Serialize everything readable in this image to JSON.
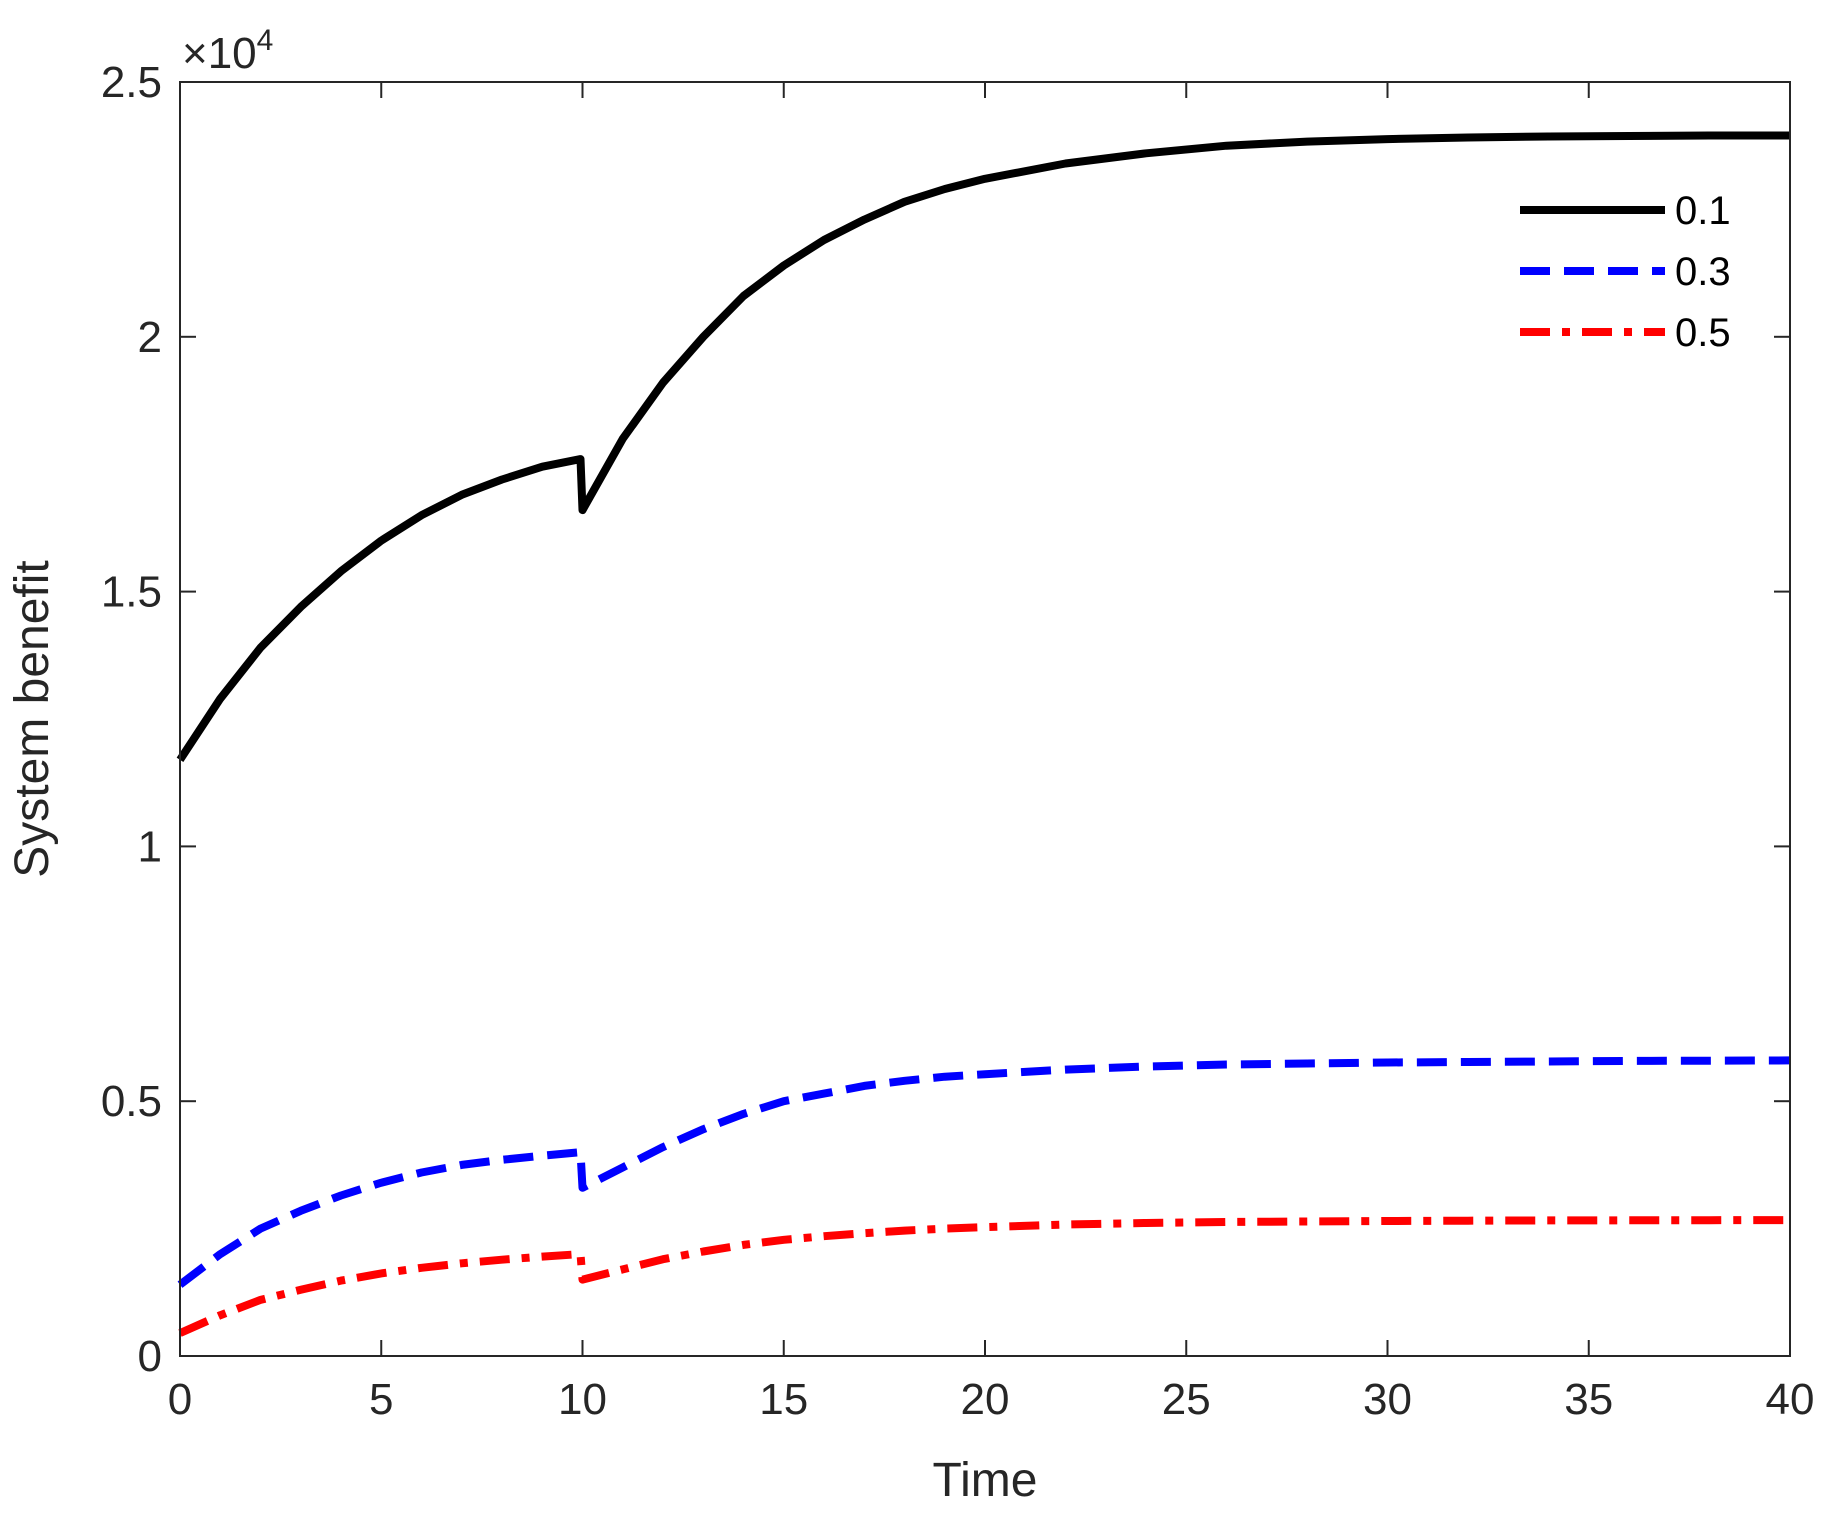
{
  "chart_data": {
    "type": "line",
    "title": "",
    "xlabel": "Time",
    "ylabel": "System benefit",
    "xlim": [
      0,
      40
    ],
    "ylim": [
      0,
      25000
    ],
    "x_ticks": [
      0,
      5,
      10,
      15,
      20,
      25,
      30,
      35,
      40
    ],
    "y_ticks": [
      0,
      5000,
      10000,
      15000,
      20000,
      25000
    ],
    "y_tick_labels": [
      "0",
      "0.5",
      "1",
      "1.5",
      "2",
      "2.5"
    ],
    "y_exponent_label": {
      "base": "×10",
      "exp": "4"
    },
    "grid": false,
    "legend_position": "top-right",
    "series": [
      {
        "name": "0.1",
        "color": "#000000",
        "style": "solid",
        "x": [
          0,
          1,
          2,
          3,
          4,
          5,
          6,
          7,
          8,
          9,
          9.95,
          10,
          11,
          12,
          13,
          14,
          15,
          16,
          17,
          18,
          19,
          20,
          22,
          24,
          26,
          28,
          30,
          32,
          34,
          36,
          38,
          40
        ],
        "y": [
          11700,
          12900,
          13900,
          14700,
          15400,
          16000,
          16500,
          16900,
          17200,
          17450,
          17600,
          16600,
          18000,
          19100,
          20000,
          20800,
          21400,
          21900,
          22300,
          22650,
          22900,
          23100,
          23400,
          23600,
          23750,
          23830,
          23880,
          23910,
          23930,
          23940,
          23950,
          23950
        ]
      },
      {
        "name": "0.3",
        "color": "#0000ff",
        "style": "dashed",
        "x": [
          0,
          1,
          2,
          3,
          4,
          5,
          6,
          7,
          8,
          9,
          9.95,
          10,
          11,
          12,
          13,
          14,
          15,
          16,
          17,
          18,
          19,
          20,
          22,
          24,
          26,
          28,
          30,
          32,
          34,
          36,
          38,
          40
        ],
        "y": [
          1400,
          2000,
          2500,
          2850,
          3150,
          3400,
          3600,
          3750,
          3850,
          3930,
          4000,
          3300,
          3700,
          4100,
          4450,
          4750,
          5000,
          5150,
          5300,
          5400,
          5480,
          5530,
          5620,
          5680,
          5720,
          5740,
          5760,
          5770,
          5780,
          5790,
          5795,
          5800
        ]
      },
      {
        "name": "0.5",
        "color": "#ff0000",
        "style": "dashdot",
        "x": [
          0,
          1,
          2,
          3,
          4,
          5,
          6,
          7,
          8,
          9,
          9.95,
          10,
          11,
          12,
          13,
          14,
          15,
          16,
          17,
          18,
          19,
          20,
          22,
          24,
          26,
          28,
          30,
          32,
          34,
          36,
          38,
          40
        ],
        "y": [
          450,
          800,
          1100,
          1300,
          1480,
          1620,
          1730,
          1820,
          1890,
          1950,
          2000,
          1500,
          1700,
          1900,
          2050,
          2180,
          2280,
          2350,
          2410,
          2460,
          2500,
          2530,
          2580,
          2610,
          2630,
          2640,
          2650,
          2655,
          2660,
          2663,
          2665,
          2667
        ]
      }
    ]
  }
}
